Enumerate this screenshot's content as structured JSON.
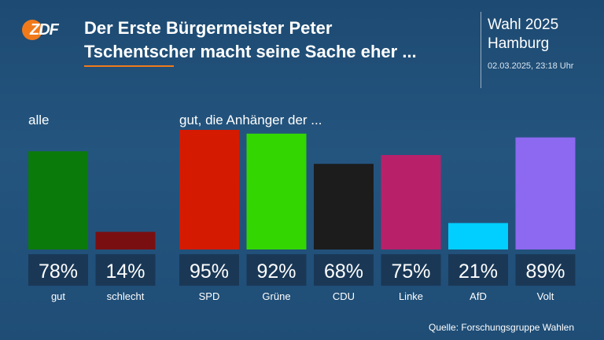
{
  "brand": {
    "logo_text": "ZDF",
    "accent_color": "#f07a1a"
  },
  "header": {
    "title_line1": "Der Erste Bürgermeister Peter",
    "title_line2": "Tschentscher macht seine Sache eher ...",
    "election_line1": "Wahl 2025",
    "election_line2": "Hamburg",
    "timestamp": "02.03.2025, 23:18 Uhr"
  },
  "chart_data": {
    "type": "bar",
    "groups": [
      {
        "label": "alle",
        "bars": [
          {
            "category": "gut",
            "value": 78,
            "label": "78%",
            "color": "#0a7a0a"
          },
          {
            "category": "schlecht",
            "value": 14,
            "label": "14%",
            "color": "#7a0f12"
          }
        ]
      },
      {
        "label": "gut, die Anhänger der ...",
        "bars": [
          {
            "category": "SPD",
            "value": 95,
            "label": "95%",
            "color": "#d41a00"
          },
          {
            "category": "Grüne",
            "value": 92,
            "label": "92%",
            "color": "#33d600"
          },
          {
            "category": "CDU",
            "value": 68,
            "label": "68%",
            "color": "#1c1c1c"
          },
          {
            "category": "Linke",
            "value": 75,
            "label": "75%",
            "color": "#b8216a"
          },
          {
            "category": "AfD",
            "value": 21,
            "label": "21%",
            "color": "#00cfff"
          },
          {
            "category": "Volt",
            "value": 89,
            "label": "89%",
            "color": "#8c69f0"
          }
        ]
      }
    ],
    "ylim": [
      0,
      100
    ]
  },
  "footer": {
    "source": "Quelle: Forschungsgruppe Wahlen"
  }
}
